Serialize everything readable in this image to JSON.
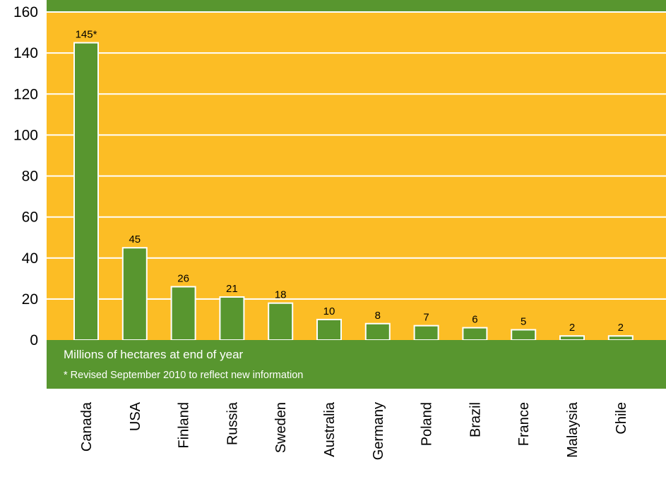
{
  "colors": {
    "plot_background": "#fcbd25",
    "band": "#58962f",
    "bar": "#58962f",
    "gridline": "#ffffff"
  },
  "notes": {
    "unit": "Millions of hectares at end of year",
    "footnote": "* Revised September 2010 to reflect new information"
  },
  "chart_data": {
    "type": "bar",
    "title": "",
    "xlabel": "",
    "ylabel": "",
    "ylim": [
      0,
      160
    ],
    "yticks": [
      "0",
      "20",
      "40",
      "60",
      "80",
      "100",
      "120",
      "140",
      "160"
    ],
    "grid": true,
    "categories": [
      "Canada",
      "USA",
      "Finland",
      "Russia",
      "Sweden",
      "Australia",
      "Germany",
      "Poland",
      "Brazil",
      "France",
      "Malaysia",
      "Chile"
    ],
    "values": [
      145,
      45,
      26,
      21,
      18,
      10,
      8,
      7,
      6,
      5,
      2,
      2
    ],
    "value_labels": [
      "145*",
      "45",
      "26",
      "21",
      "18",
      "10",
      "8",
      "7",
      "6",
      "5",
      "2",
      "2"
    ]
  }
}
